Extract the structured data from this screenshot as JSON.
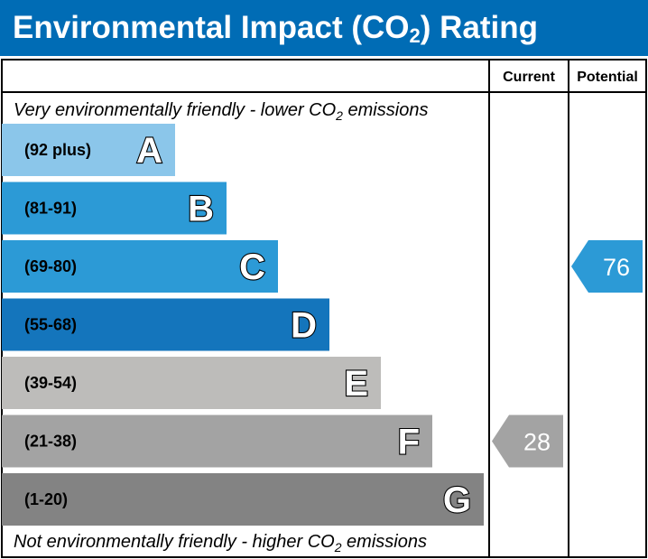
{
  "header": {
    "title_pre": "Environmental Impact (CO",
    "title_sub": "2",
    "title_post": ") Rating"
  },
  "columns": {
    "current": "Current",
    "potential": "Potential"
  },
  "notes": {
    "top_pre": "Very environmentally friendly - lower CO",
    "top_sub": "2",
    "top_post": " emissions",
    "bottom_pre": "Not environmentally friendly - higher CO",
    "bottom_sub": "2",
    "bottom_post": " emissions"
  },
  "chart_data": {
    "type": "bar",
    "title": "Environmental Impact (CO2) Rating",
    "orientation": "horizontal",
    "bands": [
      {
        "letter": "A",
        "range": "(92 plus)",
        "min": 92,
        "max": 100,
        "color": "#8bc6ea"
      },
      {
        "letter": "B",
        "range": "(81-91)",
        "min": 81,
        "max": 91,
        "color": "#2c9ad6"
      },
      {
        "letter": "C",
        "range": "(69-80)",
        "min": 69,
        "max": 80,
        "color": "#2c9ad6"
      },
      {
        "letter": "D",
        "range": "(55-68)",
        "min": 55,
        "max": 68,
        "color": "#1475bc"
      },
      {
        "letter": "E",
        "range": "(39-54)",
        "min": 39,
        "max": 54,
        "color": "#bdbcba"
      },
      {
        "letter": "F",
        "range": "(21-38)",
        "min": 21,
        "max": 38,
        "color": "#a3a3a3"
      },
      {
        "letter": "G",
        "range": "(1-20)",
        "min": 1,
        "max": 20,
        "color": "#838383"
      }
    ],
    "current": {
      "value": 28,
      "band": "F",
      "color": "#a3a3a3"
    },
    "potential": {
      "value": 76,
      "band": "C",
      "color": "#2c9ad6"
    }
  }
}
